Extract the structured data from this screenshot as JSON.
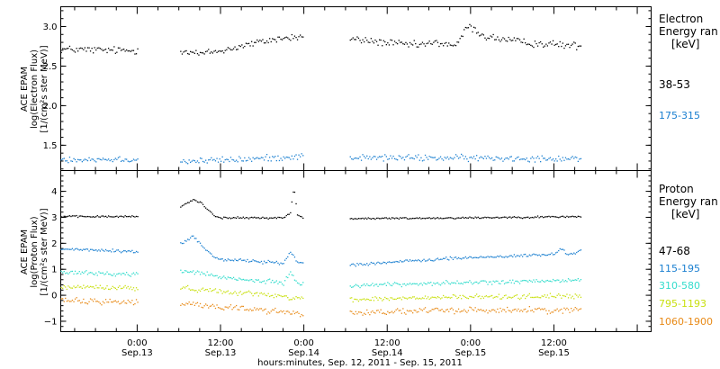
{
  "x_axis_title": "hours:minutes, Sep. 12, 2011 - Sep. 15, 2011",
  "x_ticks": [
    {
      "time": "0:00",
      "date": "Sep.13",
      "h": 24
    },
    {
      "time": "12:00",
      "date": "Sep.13",
      "h": 36
    },
    {
      "time": "0:00",
      "date": "Sep.14",
      "h": 48
    },
    {
      "time": "12:00",
      "date": "Sep.14",
      "h": 60
    },
    {
      "time": "0:00",
      "date": "Sep.15",
      "h": 72
    },
    {
      "time": "12:00",
      "date": "Sep.15",
      "h": 84
    }
  ],
  "chart_data": [
    {
      "type": "scatter",
      "panel": "electron",
      "ylabel": [
        "ACE EPAM",
        "log(Electron Flux)",
        "[1/(cm²s ster MeV)]"
      ],
      "xlim": [
        13,
        98
      ],
      "ylim": [
        1.18,
        3.25
      ],
      "yticks": [
        1.5,
        2.0,
        2.5,
        3.0
      ],
      "ytick_labels": [
        "1.5",
        "2.0",
        "2.5",
        "3.0"
      ],
      "legend_title": [
        "Electron",
        "Energy ran",
        "[keV]"
      ],
      "gaps": [
        [
          24,
          30
        ],
        [
          48,
          54.5
        ]
      ],
      "x_end": 88,
      "series": [
        {
          "name": "38-53",
          "color": "#000000",
          "keyframes": [
            [
              13,
              2.72
            ],
            [
              24,
              2.7
            ],
            [
              30,
              2.72
            ],
            [
              33,
              2.66
            ],
            [
              36,
              2.7
            ],
            [
              40,
              2.78
            ],
            [
              44,
              2.85
            ],
            [
              48,
              2.88
            ],
            [
              54.5,
              2.85
            ],
            [
              60,
              2.8
            ],
            [
              64,
              2.77
            ],
            [
              67,
              2.8
            ],
            [
              70,
              2.77
            ],
            [
              71.5,
              3.02
            ],
            [
              74,
              2.88
            ],
            [
              80,
              2.8
            ],
            [
              88,
              2.76
            ]
          ],
          "noise": 0.04
        },
        {
          "name": "175-315",
          "color": "#1a7fd0",
          "keyframes": [
            [
              13,
              1.33
            ],
            [
              24,
              1.33
            ],
            [
              30,
              1.3
            ],
            [
              40,
              1.33
            ],
            [
              48,
              1.37
            ],
            [
              54.5,
              1.35
            ],
            [
              88,
              1.34
            ]
          ],
          "noise": 0.035
        }
      ]
    },
    {
      "type": "scatter",
      "panel": "proton",
      "ylabel": [
        "ACE EPAM",
        "log(Proton Flux)",
        "[1/(cm²s ster MeV)]"
      ],
      "xlim": [
        13,
        98
      ],
      "ylim": [
        -1.4,
        4.8
      ],
      "yticks": [
        -1,
        0,
        1,
        2,
        3,
        4
      ],
      "ytick_labels": [
        "−1",
        "0",
        "1",
        "2",
        "3",
        "4"
      ],
      "legend_title": [
        "Proton",
        "Energy ran",
        "[keV]"
      ],
      "gaps": [
        [
          24,
          30
        ],
        [
          48,
          54.5
        ]
      ],
      "x_end": 88,
      "series": [
        {
          "name": "47-68",
          "color": "#000000",
          "keyframes": [
            [
              13,
              3.05
            ],
            [
              24,
              3.05
            ],
            [
              30,
              3.4
            ],
            [
              32,
              3.7
            ],
            [
              33,
              3.6
            ],
            [
              35,
              3.1
            ],
            [
              36,
              3.0
            ],
            [
              45,
              3.0
            ],
            [
              46,
              3.2
            ],
            [
              46.5,
              4.2
            ],
            [
              47,
              3.1
            ],
            [
              48,
              3.0
            ],
            [
              54.5,
              2.97
            ],
            [
              70,
              3.0
            ],
            [
              88,
              3.05
            ]
          ],
          "noise": 0.03
        },
        {
          "name": "115-195",
          "color": "#1a7fd0",
          "keyframes": [
            [
              13,
              1.8
            ],
            [
              24,
              1.7
            ],
            [
              30,
              1.95
            ],
            [
              32,
              2.3
            ],
            [
              33,
              2.0
            ],
            [
              35,
              1.5
            ],
            [
              36,
              1.4
            ],
            [
              40,
              1.35
            ],
            [
              45,
              1.25
            ],
            [
              46,
              1.7
            ],
            [
              47,
              1.3
            ],
            [
              48,
              1.25
            ],
            [
              54.5,
              1.2
            ],
            [
              64,
              1.35
            ],
            [
              70,
              1.45
            ],
            [
              80,
              1.55
            ],
            [
              84,
              1.6
            ],
            [
              85,
              1.8
            ],
            [
              86,
              1.6
            ],
            [
              88,
              1.75
            ]
          ],
          "noise": 0.05
        },
        {
          "name": "310-580",
          "color": "#33dccc",
          "keyframes": [
            [
              13,
              0.9
            ],
            [
              24,
              0.82
            ],
            [
              30,
              0.95
            ],
            [
              33,
              0.9
            ],
            [
              36,
              0.7
            ],
            [
              40,
              0.6
            ],
            [
              45,
              0.5
            ],
            [
              46,
              0.9
            ],
            [
              47,
              0.5
            ],
            [
              48,
              0.4
            ],
            [
              54.5,
              0.4
            ],
            [
              70,
              0.5
            ],
            [
              80,
              0.55
            ],
            [
              88,
              0.6
            ]
          ],
          "noise": 0.07
        },
        {
          "name": "795-1193",
          "color": "#c9e010",
          "keyframes": [
            [
              13,
              0.35
            ],
            [
              24,
              0.3
            ],
            [
              30,
              0.3
            ],
            [
              40,
              0.1
            ],
            [
              48,
              -0.1
            ],
            [
              54.5,
              -0.15
            ],
            [
              70,
              -0.05
            ],
            [
              88,
              0.0
            ]
          ],
          "noise": 0.08
        },
        {
          "name": "1060-1900",
          "color": "#e88a17",
          "keyframes": [
            [
              13,
              -0.2
            ],
            [
              24,
              -0.25
            ],
            [
              30,
              -0.3
            ],
            [
              40,
              -0.5
            ],
            [
              48,
              -0.7
            ],
            [
              54.5,
              -0.65
            ],
            [
              70,
              -0.55
            ],
            [
              88,
              -0.55
            ]
          ],
          "noise": 0.1
        }
      ]
    }
  ]
}
